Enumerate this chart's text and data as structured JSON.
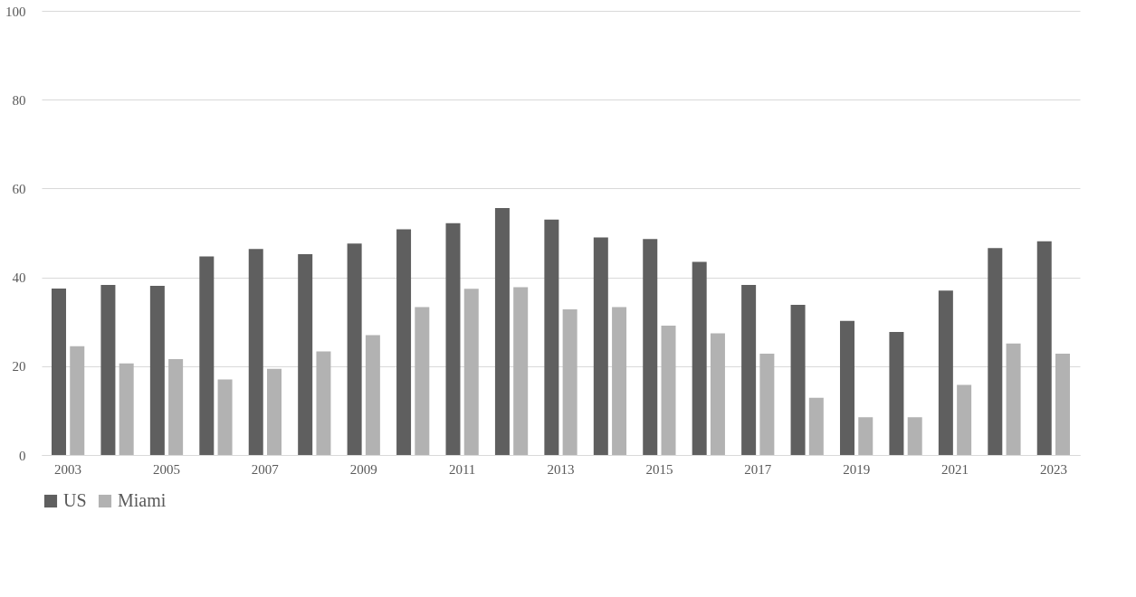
{
  "chart_data": {
    "type": "bar",
    "categories": [
      "2003",
      null,
      "2005",
      null,
      "2007",
      null,
      "2009",
      null,
      "2011",
      null,
      "2013",
      null,
      "2015",
      null,
      "2017",
      null,
      "2019",
      null,
      "2021",
      null,
      "2023"
    ],
    "series": [
      {
        "name": "US",
        "color": "#5f5f5f",
        "values": [
          37.5,
          38.3,
          38.1,
          44.7,
          46.4,
          45.2,
          47.6,
          50.8,
          52.2,
          55.6,
          53.0,
          49.0,
          48.6,
          43.5,
          38.3,
          33.8,
          30.2,
          27.7,
          37.0,
          46.6,
          48.1
        ]
      },
      {
        "name": "Miami",
        "color": "#b2b2b2",
        "values": [
          24.5,
          20.6,
          21.6,
          17.0,
          19.4,
          23.3,
          27.0,
          33.3,
          37.4,
          37.8,
          32.8,
          33.3,
          29.1,
          27.4,
          22.8,
          12.9,
          8.5,
          8.5,
          15.8,
          25.1,
          22.8
        ]
      }
    ],
    "ylim": [
      0,
      100
    ],
    "yticks": [
      0,
      20,
      40,
      60,
      80,
      100
    ],
    "grid": "y",
    "legend": "bottom"
  }
}
